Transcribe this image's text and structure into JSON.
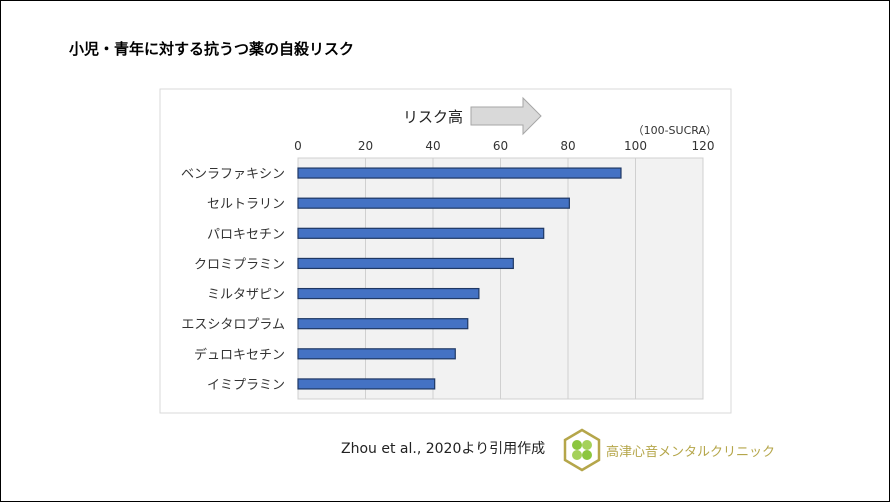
{
  "title": "小児・青年に対する抗うつ薬の自殺リスク",
  "chart_data": {
    "type": "bar",
    "orientation": "horizontal",
    "categories": [
      "ベンラファキシン",
      "セルトラリン",
      "パロキセチン",
      "クロミプラミン",
      "ミルタザピン",
      "エスシタロプラム",
      "デュロキセチン",
      "イミプラミン"
    ],
    "values": [
      95.7,
      80.4,
      72.8,
      63.8,
      53.6,
      50.3,
      46.6,
      40.5
    ],
    "xlim": [
      0,
      120
    ],
    "xticks": [
      0,
      20,
      40,
      60,
      80,
      100,
      120
    ],
    "axis_unit": "（100-SUCRA）",
    "annotation": "リスク高",
    "grid": true,
    "bar_color": "#4472c4",
    "bar_edge": "#1f3864",
    "plot_bg": "#f2f2f2"
  },
  "citation": "Zhou et al., 2020より引用作成",
  "clinic_name": "高津心音メンタルクリニック"
}
